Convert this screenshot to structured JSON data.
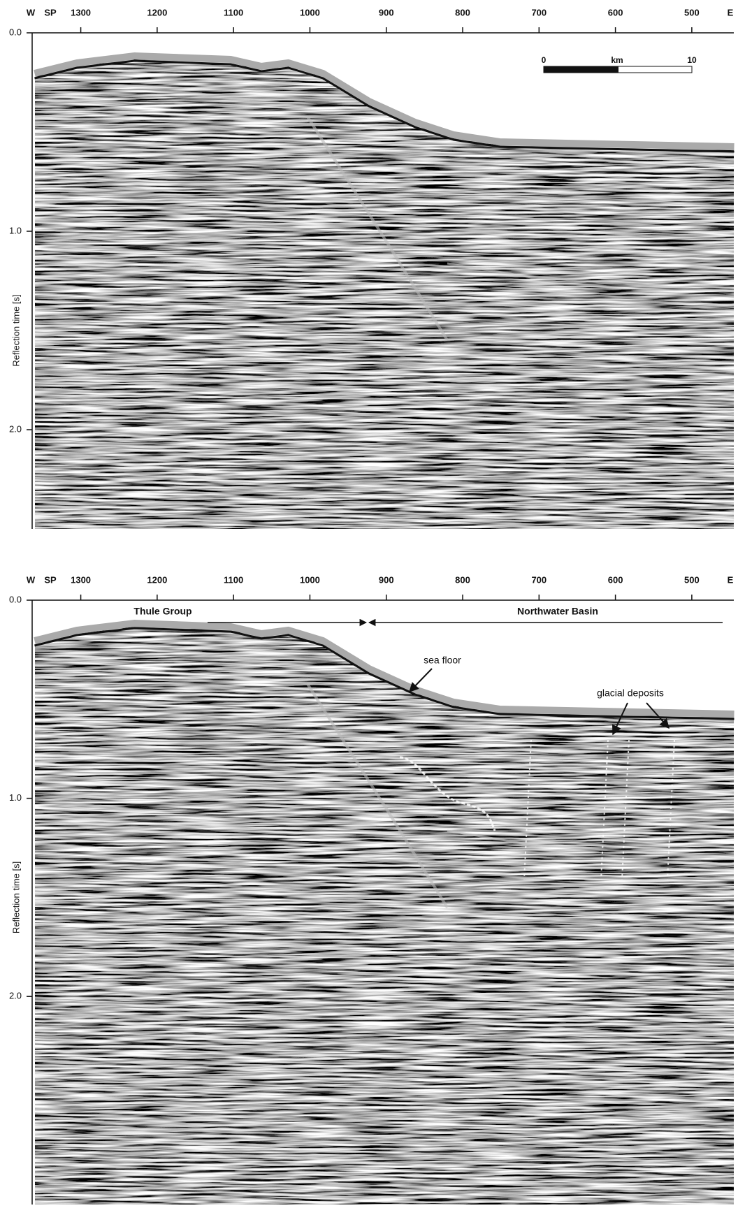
{
  "panels": [
    {
      "west_label": "W",
      "sp_label": "SP",
      "east_label": "E",
      "y_label": "Reflection time [s]",
      "xlim": [
        1360,
        445
      ],
      "xticks": [
        1300,
        1200,
        1100,
        1000,
        900,
        800,
        700,
        600,
        500
      ],
      "ylim": [
        0,
        2.5
      ],
      "yticks": [
        {
          "value": 0,
          "label": "0.0"
        },
        {
          "value": 1,
          "label": "1.0"
        },
        {
          "value": 2,
          "label": "2.0"
        }
      ],
      "scale_bar": {
        "start_label": "0",
        "unit_label": "km",
        "end_label": "10"
      }
    },
    {
      "west_label": "W",
      "sp_label": "SP",
      "east_label": "E",
      "y_label": "Reflection time [s]",
      "xlim": [
        1360,
        445
      ],
      "xticks": [
        1300,
        1200,
        1100,
        1000,
        900,
        800,
        700,
        600,
        500
      ],
      "ylim": [
        0,
        3.05
      ],
      "yticks": [
        {
          "value": 0,
          "label": "0.0"
        },
        {
          "value": 1,
          "label": "1.0"
        },
        {
          "value": 2,
          "label": "2.0"
        }
      ],
      "annotations": {
        "thule_group": "Thule Group",
        "northwater_basin": "Northwater Basin",
        "sea_floor": "sea floor",
        "glacial_deposits": "glacial deposits"
      }
    }
  ]
}
